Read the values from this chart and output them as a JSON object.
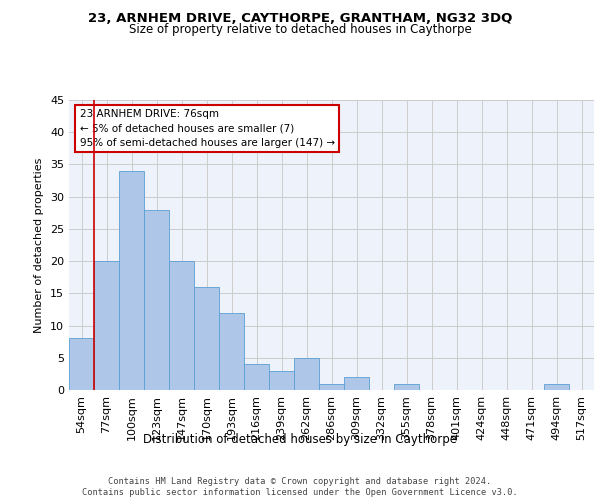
{
  "title": "23, ARNHEM DRIVE, CAYTHORPE, GRANTHAM, NG32 3DQ",
  "subtitle": "Size of property relative to detached houses in Caythorpe",
  "xlabel": "Distribution of detached houses by size in Caythorpe",
  "ylabel": "Number of detached properties",
  "categories": [
    "54sqm",
    "77sqm",
    "100sqm",
    "123sqm",
    "147sqm",
    "170sqm",
    "193sqm",
    "216sqm",
    "239sqm",
    "262sqm",
    "286sqm",
    "309sqm",
    "332sqm",
    "355sqm",
    "378sqm",
    "401sqm",
    "424sqm",
    "448sqm",
    "471sqm",
    "494sqm",
    "517sqm"
  ],
  "values": [
    8,
    20,
    34,
    28,
    20,
    16,
    12,
    4,
    3,
    5,
    1,
    2,
    0,
    1,
    0,
    0,
    0,
    0,
    0,
    1,
    0
  ],
  "bar_color": "#aec6e8",
  "bar_edge_color": "#5a9fd4",
  "annotation_text": "23 ARNHEM DRIVE: 76sqm\n← 5% of detached houses are smaller (7)\n95% of semi-detached houses are larger (147) →",
  "annotation_box_color": "#ffffff",
  "annotation_box_edge_color": "#cc0000",
  "vline_x": 0.5,
  "grid_color": "#cccccc",
  "background_color": "#eef2fa",
  "footer_text": "Contains HM Land Registry data © Crown copyright and database right 2024.\nContains public sector information licensed under the Open Government Licence v3.0.",
  "ylim": [
    0,
    45
  ],
  "yticks": [
    0,
    5,
    10,
    15,
    20,
    25,
    30,
    35,
    40,
    45
  ]
}
